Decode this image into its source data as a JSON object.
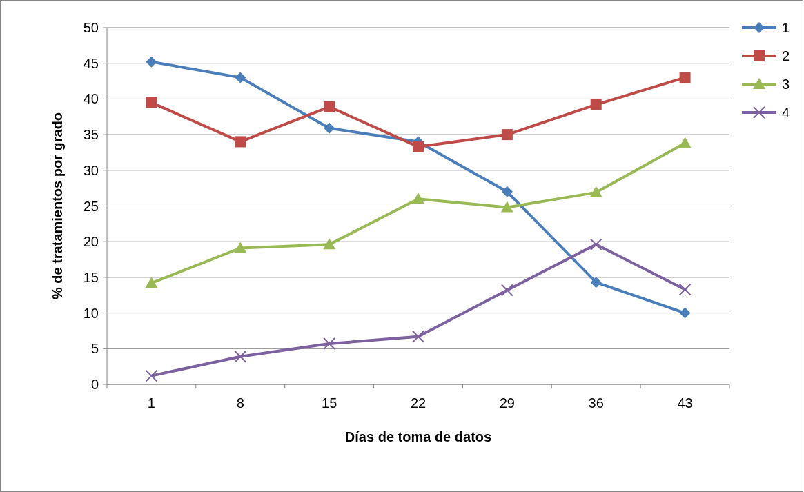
{
  "chart_data": {
    "type": "line",
    "xlabel": "Días de toma de datos",
    "ylabel": "% de tratamientos por grado",
    "categories": [
      "1",
      "8",
      "15",
      "22",
      "29",
      "36",
      "43"
    ],
    "series": [
      {
        "name": "1",
        "color": "#4a7ebb",
        "marker": "diamond",
        "values": [
          45.2,
          43.0,
          35.9,
          34.0,
          27.0,
          14.3,
          10.0
        ]
      },
      {
        "name": "2",
        "color": "#be4b48",
        "marker": "square",
        "values": [
          39.5,
          34.0,
          38.9,
          33.3,
          35.0,
          39.2,
          43.0
        ]
      },
      {
        "name": "3",
        "color": "#98b954",
        "marker": "triangle",
        "values": [
          14.2,
          19.1,
          19.6,
          26.0,
          24.8,
          26.9,
          33.8
        ]
      },
      {
        "name": "4",
        "color": "#7d60a0",
        "marker": "cross",
        "values": [
          1.2,
          3.9,
          5.7,
          6.7,
          13.2,
          19.6,
          13.3
        ]
      }
    ],
    "ylim": [
      0,
      50
    ],
    "yticks": [
      0,
      5,
      10,
      15,
      20,
      25,
      30,
      35,
      40,
      45,
      50
    ],
    "grid": "y",
    "legend": "top right",
    "line_style": "solid"
  }
}
